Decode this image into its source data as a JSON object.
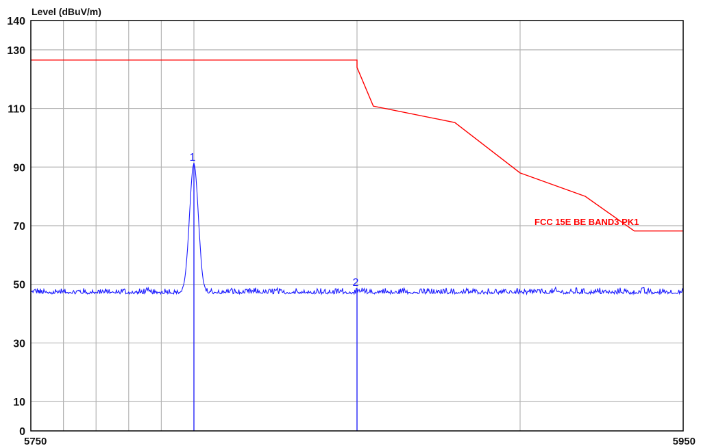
{
  "chart_data": {
    "type": "line",
    "title": "",
    "ylabel": "Level (dBuV/m)",
    "xlabel": "",
    "xlim": [
      5750,
      5950
    ],
    "ylim": [
      0,
      140
    ],
    "x_tick_labels": [
      {
        "value": 5750,
        "label": "5750"
      },
      {
        "value": 5950,
        "label": "5950"
      }
    ],
    "x_gridlines": [
      5760,
      5770,
      5780,
      5790,
      5800,
      5850,
      5900
    ],
    "y_ticks": [
      0,
      10,
      30,
      50,
      70,
      90,
      110,
      130,
      140
    ],
    "y_gridlines": [
      10,
      30,
      50,
      70,
      90,
      110,
      130
    ],
    "grid": true,
    "colors": {
      "measurement": "#1a1aff",
      "limit": "#ff0000",
      "grid": "#b4b4b4",
      "frame": "#000000"
    },
    "limit_line": {
      "label": "FCC 15E BE BAND3 PK1",
      "x": [
        5750,
        5850,
        5850,
        5855,
        5880,
        5900,
        5920,
        5935,
        5950
      ],
      "y": [
        126.5,
        126.5,
        124,
        110.8,
        105.2,
        88,
        80,
        68.2,
        68.2
      ]
    },
    "measurement": {
      "x_start": 5750,
      "x_end": 5950,
      "noise_level": 47,
      "peak_x": 5800,
      "peak_y": 91.2
    },
    "markers": [
      {
        "label": "1",
        "x": 5800,
        "y": 91.2
      },
      {
        "label": "2",
        "x": 5850,
        "y": 48.5
      }
    ]
  }
}
